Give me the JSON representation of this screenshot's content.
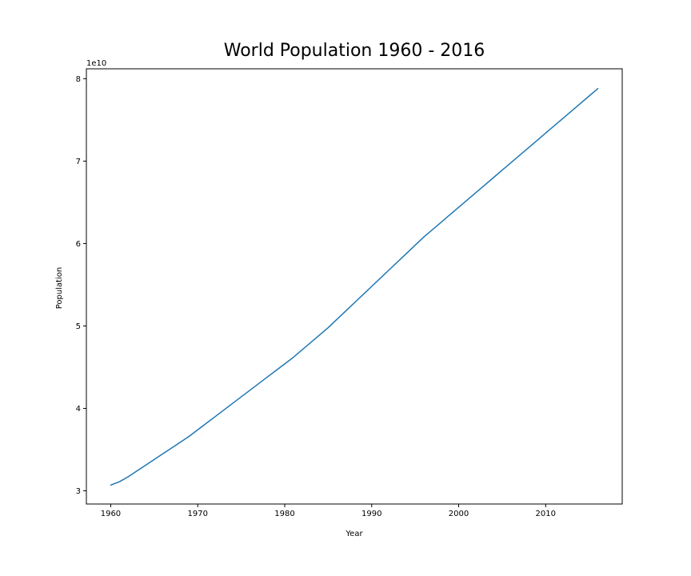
{
  "chart_data": {
    "type": "line",
    "title": "World Population 1960 - 2016",
    "xlabel": "Year",
    "ylabel": "Population",
    "y_offset_label": "1e10",
    "xlim": [
      1957.2,
      2018.8
    ],
    "ylim": [
      2.84,
      8.12
    ],
    "x_ticks": [
      1960,
      1970,
      1980,
      1990,
      2000,
      2010
    ],
    "y_ticks": [
      3,
      4,
      5,
      6,
      7,
      8
    ],
    "grid": false,
    "line_color": "#1f77b4",
    "series": [
      {
        "x": [
          1960,
          1961,
          1962,
          1963,
          1964,
          1965,
          1966,
          1967,
          1968,
          1969,
          1970,
          1971,
          1972,
          1973,
          1974,
          1975,
          1976,
          1977,
          1978,
          1979,
          1980,
          1981,
          1982,
          1983,
          1984,
          1985,
          1986,
          1987,
          1988,
          1989,
          1990,
          1991,
          1992,
          1993,
          1994,
          1995,
          1996,
          1997,
          1998,
          1999,
          2000,
          2001,
          2002,
          2003,
          2004,
          2005,
          2006,
          2007,
          2008,
          2009,
          2010,
          2011,
          2012,
          2013,
          2014,
          2015,
          2016
        ],
        "values": [
          3.07,
          3.11,
          3.17,
          3.24,
          3.31,
          3.38,
          3.45,
          3.52,
          3.59,
          3.66,
          3.74,
          3.82,
          3.9,
          3.98,
          4.06,
          4.14,
          4.22,
          4.3,
          4.38,
          4.46,
          4.54,
          4.62,
          4.71,
          4.8,
          4.89,
          4.98,
          5.08,
          5.18,
          5.28,
          5.38,
          5.48,
          5.58,
          5.68,
          5.78,
          5.88,
          5.98,
          6.08,
          6.17,
          6.26,
          6.35,
          6.44,
          6.53,
          6.62,
          6.71,
          6.8,
          6.89,
          6.98,
          7.07,
          7.16,
          7.25,
          7.34,
          7.43,
          7.52,
          7.61,
          7.7,
          7.79,
          7.88
        ]
      }
    ]
  }
}
